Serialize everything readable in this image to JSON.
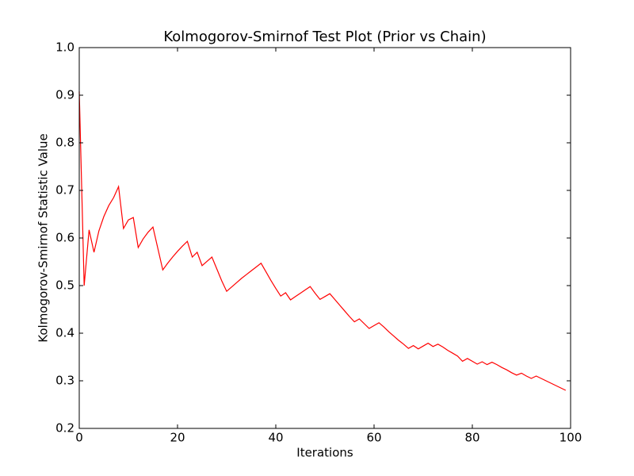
{
  "chart_data": {
    "type": "line",
    "title": "Kolmogorov-Smirnof Test Plot (Prior vs Chain)",
    "x_label": "Iterations",
    "y_label": "Kolmogorov-Smirnof Statistic Value",
    "xlim": [
      0,
      100
    ],
    "xticks": [
      0,
      20,
      40,
      60,
      80,
      100
    ],
    "ylim": [
      0.2,
      1
    ],
    "yticks": [
      0.2,
      0.3,
      0.4,
      0.5,
      0.6,
      0.7,
      0.8,
      0.9,
      {
        "value": 1,
        "label": "1.0"
      }
    ],
    "series": [
      {
        "color": "#ff0000",
        "x": [
          0,
          1,
          2,
          3,
          4,
          5,
          6,
          7,
          8,
          9,
          10,
          11,
          12,
          13,
          14,
          15,
          16,
          17,
          18,
          19,
          20,
          21,
          22,
          23,
          24,
          25,
          26,
          27,
          28,
          29,
          30,
          31,
          32,
          33,
          34,
          35,
          36,
          37,
          38,
          39,
          40,
          41,
          42,
          43,
          44,
          45,
          46,
          47,
          48,
          49,
          50,
          51,
          52,
          53,
          54,
          55,
          56,
          57,
          58,
          59,
          60,
          61,
          62,
          63,
          64,
          65,
          66,
          67,
          68,
          69,
          70,
          71,
          72,
          73,
          74,
          75,
          76,
          77,
          78,
          79,
          80,
          81,
          82,
          83,
          84,
          85,
          86,
          87,
          88,
          89,
          90,
          91,
          92,
          93,
          94,
          95,
          96,
          97,
          98,
          99
        ],
        "values": [
          0.908,
          0.5,
          0.617,
          0.57,
          0.615,
          0.645,
          0.668,
          0.685,
          0.708,
          0.62,
          0.638,
          0.643,
          0.58,
          0.598,
          0.612,
          0.623,
          0.578,
          0.533,
          0.547,
          0.56,
          0.572,
          0.583,
          0.593,
          0.56,
          0.57,
          0.542,
          0.551,
          0.56,
          0.535,
          0.51,
          0.488,
          0.497,
          0.506,
          0.515,
          0.523,
          0.531,
          0.539,
          0.547,
          0.529,
          0.511,
          0.494,
          0.478,
          0.485,
          0.47,
          0.477,
          0.484,
          0.491,
          0.498,
          0.484,
          0.471,
          0.477,
          0.483,
          0.471,
          0.459,
          0.447,
          0.435,
          0.424,
          0.43,
          0.42,
          0.41,
          0.416,
          0.422,
          0.413,
          0.403,
          0.394,
          0.385,
          0.377,
          0.368,
          0.374,
          0.367,
          0.373,
          0.379,
          0.372,
          0.377,
          0.371,
          0.364,
          0.358,
          0.352,
          0.341,
          0.347,
          0.341,
          0.335,
          0.34,
          0.334,
          0.339,
          0.334,
          0.328,
          0.323,
          0.317,
          0.312,
          0.316,
          0.31,
          0.305,
          0.31,
          0.305,
          0.3,
          0.295,
          0.29,
          0.285,
          0.28
        ]
      }
    ]
  }
}
